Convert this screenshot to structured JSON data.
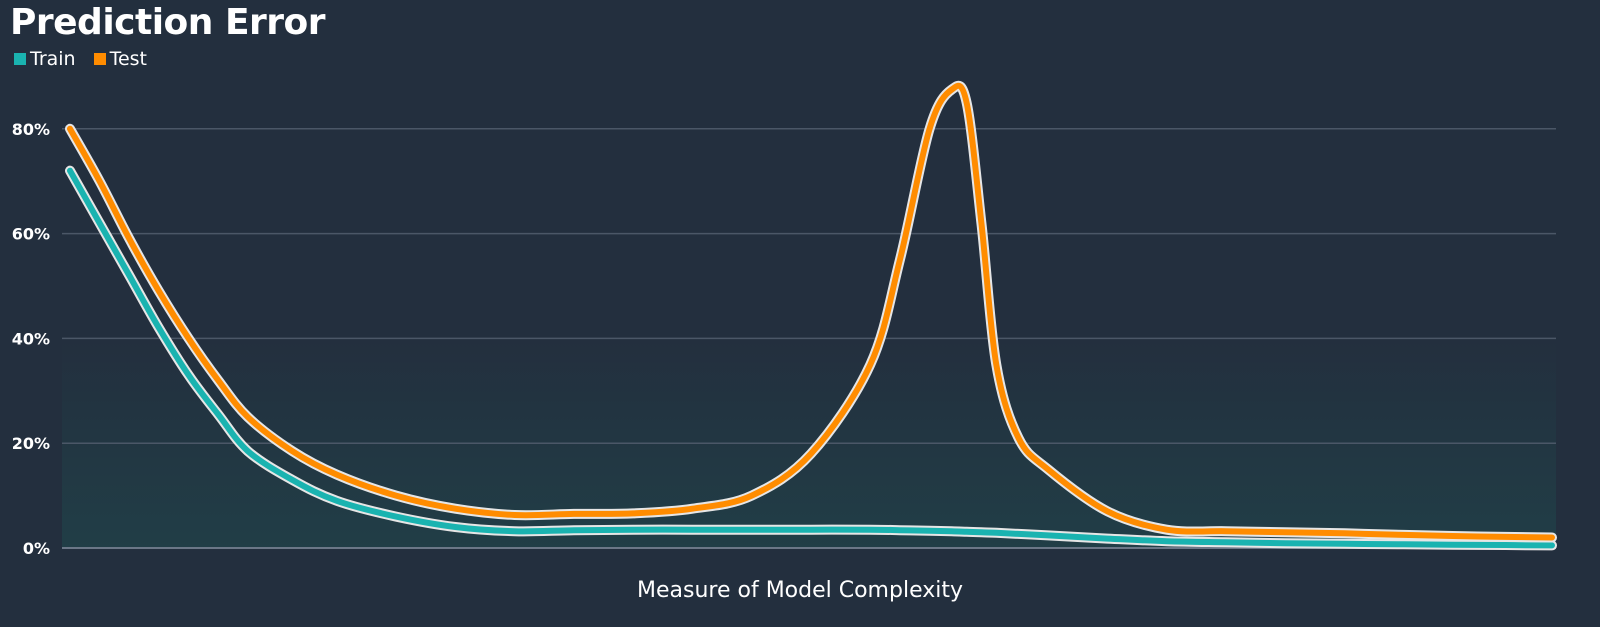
{
  "chart_data": {
    "type": "line",
    "title": "Prediction Error",
    "xlabel": "Measure of Model Complexity",
    "ylabel": "",
    "ylim": [
      0,
      88
    ],
    "yticks": [
      0,
      20,
      40,
      60,
      80
    ],
    "ytick_labels": [
      "0%",
      "20%",
      "40%",
      "60%",
      "80%"
    ],
    "grid": true,
    "legend_position": "top-left",
    "x": [
      0,
      2,
      4,
      6,
      8,
      10,
      12,
      15,
      18,
      22,
      26,
      30,
      34,
      38,
      42,
      46,
      50,
      54,
      56,
      58,
      59.5,
      60.5,
      61.5,
      62.5,
      64,
      66,
      70,
      74,
      78,
      82,
      86,
      90,
      95,
      100
    ],
    "series": [
      {
        "name": "Train",
        "color": "#1ab3b0",
        "values": [
          72,
          62,
          52,
          42,
          33,
          25.5,
          18.5,
          13,
          9,
          6,
          4,
          3.2,
          3.4,
          3.5,
          3.5,
          3.5,
          3.5,
          3.5,
          3.4,
          3.3,
          3.2,
          3.1,
          3.0,
          2.9,
          2.7,
          2.4,
          1.8,
          1.3,
          1.1,
          0.9,
          0.8,
          0.7,
          0.6,
          0.5
        ]
      },
      {
        "name": "Test",
        "color": "#ff8c00",
        "values": [
          80,
          70,
          59,
          49,
          40,
          32,
          25,
          18.5,
          14,
          10,
          7.5,
          6.3,
          6.5,
          6.6,
          7.5,
          10,
          18,
          35,
          55,
          80,
          87.5,
          85,
          62,
          35,
          21,
          15,
          7,
          3.5,
          3.2,
          3.0,
          2.8,
          2.5,
          2.2,
          2.0
        ]
      }
    ]
  }
}
